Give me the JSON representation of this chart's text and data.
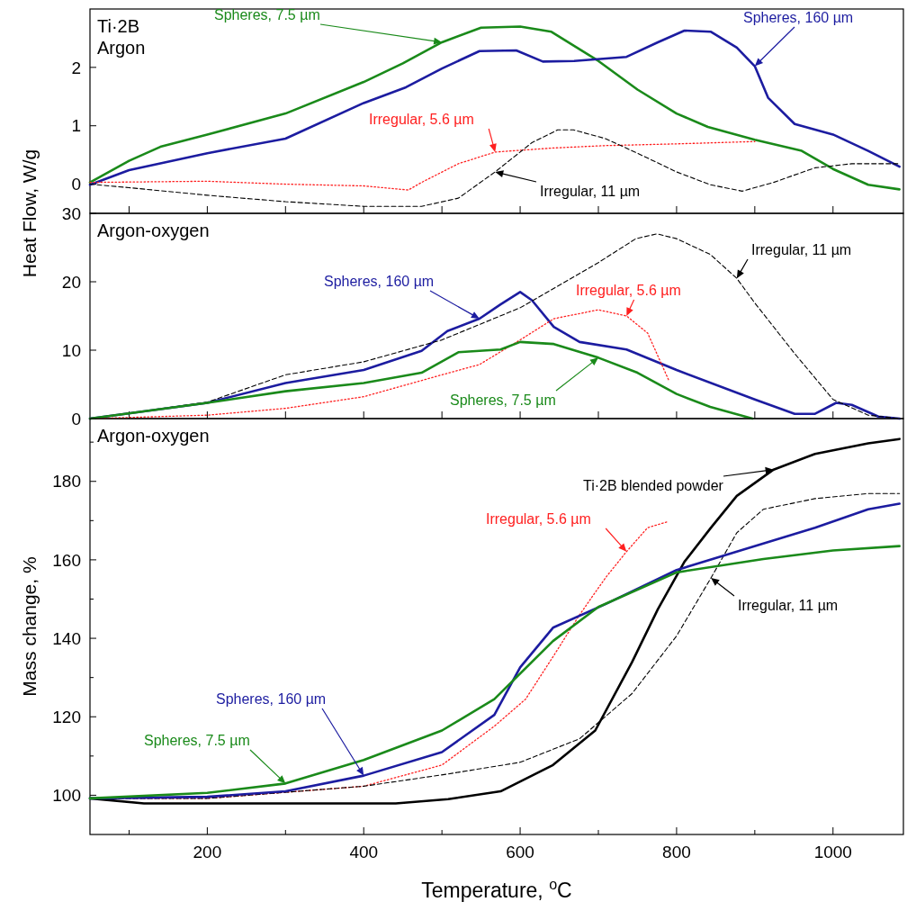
{
  "chart_data": [
    {
      "type": "line",
      "ylabel": "Heat Flow, W/g",
      "annotations": [
        "Ti·2B",
        "Argon"
      ],
      "xlim": [
        50,
        1090
      ],
      "xticks": [
        {
          "value": 100,
          "label": null
        },
        {
          "value": 200,
          "label": null
        },
        {
          "value": 300,
          "label": null
        },
        {
          "value": 400,
          "label": null
        },
        {
          "value": 500,
          "label": null
        },
        {
          "value": 600,
          "label": null
        },
        {
          "value": 700,
          "label": null
        },
        {
          "value": 800,
          "label": null
        },
        {
          "value": 900,
          "label": null
        },
        {
          "value": 1000,
          "label": null
        }
      ],
      "ylim": [
        -0.5,
        3
      ],
      "yticks": [
        0,
        1,
        2
      ],
      "tick_labels": "y",
      "grid": false,
      "series": [
        {
          "name": "Spheres, 7.5 µm",
          "color": "#1a8a1a",
          "line_style": "solid",
          "x": [
            50,
            100,
            140,
            200,
            300,
            400,
            450,
            500,
            550,
            600,
            640,
            700,
            750,
            800,
            840,
            900,
            960,
            1000,
            1045,
            1085
          ],
          "values": [
            0.03,
            0.4,
            0.64,
            0.85,
            1.21,
            1.75,
            2.07,
            2.43,
            2.68,
            2.7,
            2.61,
            2.11,
            1.62,
            1.21,
            0.98,
            0.76,
            0.57,
            0.26,
            -0.01,
            -0.09
          ]
        },
        {
          "name": "Spheres, 160 µm",
          "color": "#1c1ca0",
          "line_style": "solid",
          "x": [
            50,
            100,
            200,
            300,
            400,
            454,
            500,
            548,
            595,
            629,
            669,
            736,
            776,
            810,
            844,
            877,
            900,
            917,
            951,
            1000,
            1045,
            1085
          ],
          "values": [
            -0.01,
            0.24,
            0.53,
            0.78,
            1.39,
            1.66,
            1.98,
            2.28,
            2.29,
            2.1,
            2.11,
            2.18,
            2.43,
            2.63,
            2.61,
            2.34,
            2.02,
            1.48,
            1.03,
            0.85,
            0.57,
            0.3
          ]
        },
        {
          "name": "Irregular, 5.6 µm",
          "color": "#ff2020",
          "line_style": "dotted",
          "x": [
            50,
            200,
            300,
            400,
            457,
            474,
            521,
            568,
            643,
            708,
            800,
            900
          ],
          "values": [
            0.03,
            0.05,
            0,
            -0.03,
            -0.1,
            0.03,
            0.35,
            0.55,
            0.62,
            0.66,
            0.69,
            0.73
          ]
        },
        {
          "name": "Irregular, 11 µm",
          "color": "#000000",
          "line_style": "dashed",
          "x": [
            50,
            100,
            200,
            300,
            400,
            474,
            521,
            568,
            615,
            648,
            668,
            709,
            750,
            800,
            843,
            884,
            924,
            977,
            1024,
            1085
          ],
          "values": [
            0,
            -0.06,
            -0.19,
            -0.3,
            -0.38,
            -0.38,
            -0.24,
            0.21,
            0.71,
            0.93,
            0.93,
            0.78,
            0.53,
            0.21,
            -0.01,
            -0.12,
            0.03,
            0.28,
            0.35,
            0.35
          ]
        }
      ]
    },
    {
      "type": "line",
      "annotations": [
        "Argon-oxygen"
      ],
      "xlim": [
        50,
        1090
      ],
      "xticks": [
        {
          "value": 100,
          "label": null
        },
        {
          "value": 200,
          "label": null
        },
        {
          "value": 300,
          "label": null
        },
        {
          "value": 400,
          "label": null
        },
        {
          "value": 500,
          "label": null
        },
        {
          "value": 600,
          "label": null
        },
        {
          "value": 700,
          "label": null
        },
        {
          "value": 800,
          "label": null
        },
        {
          "value": 900,
          "label": null
        },
        {
          "value": 1000,
          "label": null
        }
      ],
      "ylim": [
        0,
        30
      ],
      "yticks": [
        0,
        10,
        20,
        30
      ],
      "tick_labels": "y",
      "grid": false,
      "series": [
        {
          "name": "Spheres, 160 µm",
          "color": "#1c1ca0",
          "line_style": "solid",
          "x": [
            50,
            200,
            300,
            400,
            474,
            507,
            548,
            575,
            600,
            615,
            643,
            676,
            736,
            800,
            900,
            951,
            977,
            1004,
            1024,
            1058,
            1085
          ],
          "values": [
            0,
            2.3,
            5.2,
            7.1,
            9.9,
            12.8,
            14.6,
            16.7,
            18.5,
            17.3,
            13.4,
            11.2,
            10.1,
            7.1,
            2.8,
            0.7,
            0.7,
            2.3,
            2,
            0.3,
            0
          ]
        },
        {
          "name": "Irregular, 5.6 µm",
          "color": "#ff2020",
          "line_style": "dotted",
          "x": [
            50,
            200,
            300,
            400,
            500,
            548,
            600,
            643,
            700,
            736,
            763,
            790
          ],
          "values": [
            0,
            0.5,
            1.5,
            3.2,
            6.4,
            7.9,
            11.5,
            14.6,
            15.9,
            15,
            12.5,
            5.6
          ]
        },
        {
          "name": "Irregular, 11 µm",
          "color": "#000000",
          "line_style": "dashed",
          "x": [
            50,
            200,
            300,
            400,
            500,
            600,
            700,
            748,
            775,
            800,
            843,
            877,
            900,
            951,
            1000,
            1045,
            1085
          ],
          "values": [
            0,
            2.4,
            6.4,
            8.3,
            11.5,
            16.2,
            22.8,
            26.3,
            27,
            26.3,
            24,
            20.5,
            16.9,
            9.5,
            2.8,
            0.5,
            0
          ]
        },
        {
          "name": "Spheres, 7.5 µm",
          "color": "#1a8a1a",
          "line_style": "solid",
          "x": [
            50,
            200,
            300,
            400,
            474,
            521,
            575,
            600,
            643,
            700,
            750,
            800,
            843,
            897
          ],
          "values": [
            0,
            2.3,
            4,
            5.2,
            6.7,
            9.7,
            10.1,
            11.2,
            10.9,
            8.9,
            6.7,
            3.6,
            1.7,
            0
          ]
        }
      ]
    },
    {
      "type": "line",
      "ylabel": "Mass change, %",
      "xlabel": "Temperature, $^{o}$C",
      "annotations": [
        "Argon-oxygen"
      ],
      "xlim": [
        50,
        1090
      ],
      "xticks": [
        {
          "value": 100,
          "label": null
        },
        200,
        {
          "value": 300,
          "label": null
        },
        400,
        {
          "value": 500,
          "label": null
        },
        600,
        {
          "value": 700,
          "label": null
        },
        800,
        {
          "value": 900,
          "label": null
        },
        1000
      ],
      "ylim": [
        90,
        196
      ],
      "yticks": [
        100,
        {
          "value": 110,
          "label": null
        },
        120,
        {
          "value": 130,
          "label": null
        },
        140,
        {
          "value": 150,
          "label": null
        },
        160,
        {
          "value": 170,
          "label": null
        },
        180,
        {
          "value": 190,
          "label": null
        }
      ],
      "grid": false,
      "series": [
        {
          "name": "Ti·2B blended powder",
          "color": "#000000",
          "line_style": "solid",
          "x": [
            50,
            119,
            300,
            441,
            508,
            575,
            642,
            696,
            743,
            776,
            810,
            844,
            877,
            924,
            977,
            1045,
            1085
          ],
          "values": [
            99.2,
            97.9,
            97.9,
            97.9,
            99,
            101,
            107.7,
            116.5,
            133.9,
            147.4,
            159.5,
            168.2,
            176.3,
            183,
            187,
            189.7,
            190.8
          ]
        },
        {
          "name": "Irregular, 5.6 µm",
          "color": "#ff2020",
          "line_style": "dotted",
          "x": [
            50,
            200,
            400,
            500,
            567,
            607,
            642,
            676,
            709,
            736,
            763,
            790
          ],
          "values": [
            99.2,
            99.2,
            102.3,
            107.7,
            117.6,
            124.5,
            135.3,
            146,
            155.4,
            162.1,
            168.2,
            169.8
          ]
        },
        {
          "name": "Irregular, 11 µm",
          "color": "#000000",
          "line_style": "dashed",
          "x": [
            50,
            200,
            400,
            507,
            600,
            676,
            743,
            800,
            844,
            877,
            911,
            977,
            1045,
            1085
          ],
          "values": [
            99.2,
            99.2,
            102.3,
            105.4,
            108.4,
            114.4,
            125.9,
            140.6,
            155.4,
            166.9,
            172.9,
            175.6,
            176.9,
            176.9
          ]
        },
        {
          "name": "Spheres, 160 µm",
          "color": "#1c1ca0",
          "line_style": "solid",
          "x": [
            50,
            200,
            300,
            400,
            500,
            567,
            600,
            642,
            709,
            800,
            877,
            977,
            1045,
            1085
          ],
          "values": [
            99.2,
            99.6,
            101,
            105,
            111,
            120.5,
            132.6,
            142.7,
            148.7,
            157.4,
            162.1,
            168.2,
            172.9,
            174.3
          ]
        },
        {
          "name": "Spheres, 7.5 µm",
          "color": "#1a8a1a",
          "line_style": "solid",
          "x": [
            50,
            200,
            300,
            400,
            500,
            567,
            642,
            700,
            800,
            911,
            1000,
            1085
          ],
          "values": [
            99.2,
            100.6,
            103,
            109,
            116.5,
            124.5,
            139.3,
            148,
            156.8,
            160.2,
            162.4,
            163.5
          ]
        }
      ]
    }
  ]
}
